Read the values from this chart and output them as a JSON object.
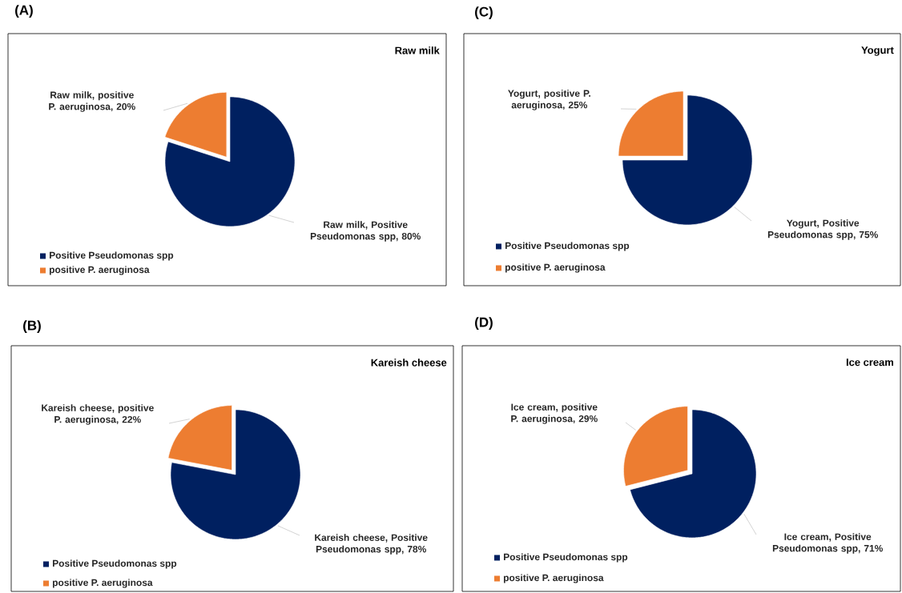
{
  "chart_data": [
    {
      "type": "pie",
      "title": "(A)",
      "subtitle": "Raw milk",
      "categories": [
        "Positive Pseudomonas spp",
        "positive P. aeruginosa"
      ],
      "values": [
        80,
        20
      ],
      "colors": [
        "#002060",
        "#ed7d31"
      ],
      "value_labels": [
        "Raw milk, Positive Pseudomonas spp, 80%",
        "Raw milk, positive P. aeruginosa, 20%"
      ],
      "legend": "bottom left"
    },
    {
      "type": "pie",
      "title": "(C)",
      "subtitle": "Yogurt",
      "categories": [
        "Positive Pseudomonas spp",
        "positive P. aeruginosa"
      ],
      "values": [
        75,
        25
      ],
      "colors": [
        "#002060",
        "#ed7d31"
      ],
      "value_labels": [
        "Yogurt, Positive Pseudomonas spp, 75%",
        "Yogurt, positive P. aeruginosa, 25%"
      ],
      "legend": "bottom left"
    },
    {
      "type": "pie",
      "title": "(B)",
      "subtitle": "Kareish cheese",
      "categories": [
        "Positive Pseudomonas spp",
        "positive P. aeruginosa"
      ],
      "values": [
        78,
        22
      ],
      "colors": [
        "#002060",
        "#ed7d31"
      ],
      "value_labels": [
        "Kareish cheese, Positive Pseudomonas spp, 78%",
        "Kareish cheese, positive P. aeruginosa, 22%"
      ],
      "legend": "bottom left"
    },
    {
      "type": "pie",
      "title": "(D)",
      "subtitle": "Ice cream",
      "categories": [
        "Positive Pseudomonas spp",
        "positive P. aeruginosa"
      ],
      "values": [
        71,
        29
      ],
      "colors": [
        "#002060",
        "#ed7d31"
      ],
      "value_labels": [
        "Ice cream, Positive Pseudomonas spp, 71%",
        "Ice cream, positive P. aeruginosa, 29%"
      ],
      "legend": "bottom left"
    }
  ]
}
